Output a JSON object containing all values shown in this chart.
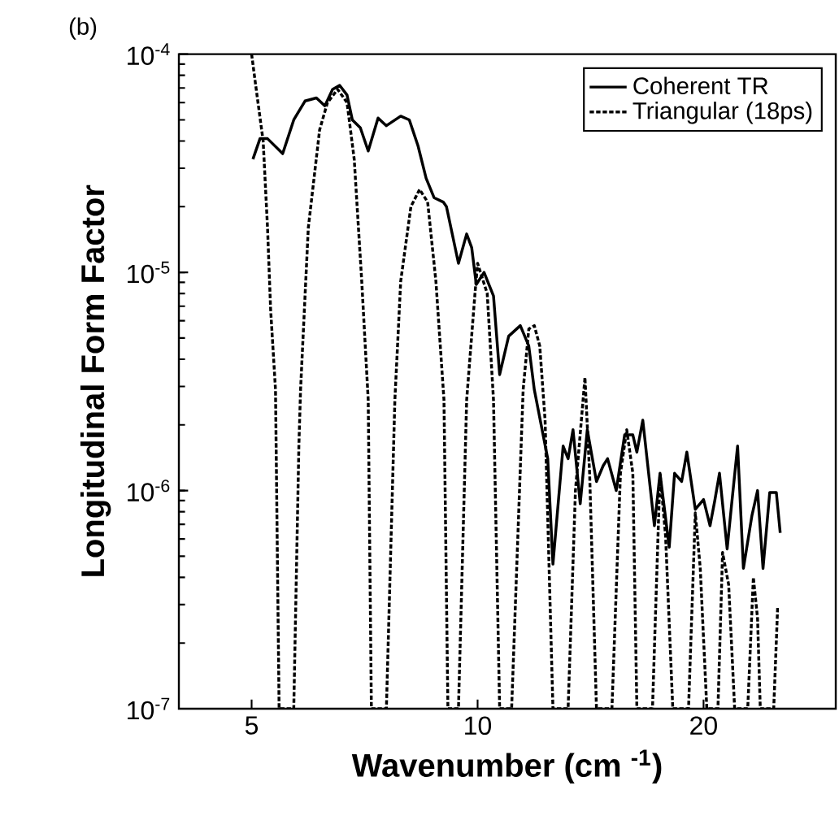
{
  "chart_data": {
    "type": "line",
    "xlabel": "Wavenumber (cm $^{-1}$)",
    "ylabel": "Longitudinal Form Factor",
    "annotations": [
      "(b)"
    ],
    "log": "xy",
    "xlim": [
      4,
      30
    ],
    "xticks": [
      5,
      10,
      20
    ],
    "ylim": [
      1e-07,
      0.0001
    ],
    "yticks": [
      {
        "value": 1e-07,
        "label": "10$^{-7}$"
      },
      {
        "value": 1e-06,
        "label": "10$^{-6}$"
      },
      {
        "value": 1e-05,
        "label": "10$^{-5}$"
      },
      {
        "value": 0.0001,
        "label": "10$^{-4}$"
      }
    ],
    "legend": "top right",
    "series": [
      {
        "name": "Coherent TR",
        "color": "#000000",
        "line_style": "solid",
        "x": [
          5.02,
          5.13,
          5.25,
          5.5,
          5.69,
          5.89,
          6.1,
          6.26,
          6.41,
          6.55,
          6.7,
          6.81,
          6.98,
          7.15,
          7.37,
          7.56,
          7.9,
          8.11,
          8.33,
          8.54,
          8.75,
          9.0,
          9.09,
          9.43,
          9.67,
          9.82,
          9.96,
          10.2,
          10.3,
          10.5,
          10.7,
          11.0,
          11.4,
          11.7,
          11.9,
          12.4,
          12.6,
          13.0,
          13.2,
          13.4,
          13.7,
          14.0,
          14.4,
          14.7,
          14.9,
          15.3,
          15.7,
          16.1,
          16.3,
          16.6,
          17.2,
          17.5,
          18.0,
          18.3,
          18.7,
          19.0,
          19.5,
          20.0,
          20.4,
          20.7,
          21.0,
          21.5,
          21.8,
          22.2,
          22.6,
          23.2,
          23.6,
          24.0,
          24.5,
          25.0,
          25.3
        ],
        "values": [
          3.3e-05,
          4.1e-05,
          4.1e-05,
          3.5e-05,
          5e-05,
          6.1e-05,
          6.3e-05,
          5.8e-05,
          6.9e-05,
          7.2e-05,
          6.5e-05,
          5e-05,
          4.6e-05,
          3.6e-05,
          5.1e-05,
          4.7e-05,
          5.2e-05,
          5e-05,
          3.8e-05,
          2.7e-05,
          2.2e-05,
          2.1e-05,
          2e-05,
          1.1e-05,
          1.5e-05,
          1.3e-05,
          8.8e-06,
          1e-05,
          9.2e-06,
          7.8e-06,
          3.4e-06,
          5.1e-06,
          5.7e-06,
          4.6e-06,
          2.9e-06,
          1.4e-06,
          4.6e-07,
          1.6e-06,
          1.4e-06,
          1.9e-06,
          8.7e-07,
          1.9e-06,
          1.1e-06,
          1.3e-06,
          1.4e-06,
          1e-06,
          1.8e-06,
          1.8e-06,
          1.5e-06,
          2.1e-06,
          6.9e-07,
          1.2e-06,
          5.5e-07,
          1.2e-06,
          1.1e-06,
          1.5e-06,
          8.2e-07,
          9.1e-07,
          6.9e-07,
          9e-07,
          1.2e-06,
          5.4e-07,
          8.7e-07,
          1.6e-06,
          4.4e-07,
          7.7e-07,
          1e-06,
          4.4e-07,
          9.8e-07,
          9.8e-07,
          6.4e-07
        ]
      },
      {
        "name": "Triangular (18ps)",
        "color": "#000000",
        "line_style": "dashed",
        "x": [
          5.0,
          5.08,
          5.18,
          5.25,
          5.3,
          5.38,
          5.44,
          5.69,
          5.78,
          5.81,
          5.95,
          6.16,
          6.31,
          6.51,
          6.7,
          6.85,
          7.01,
          7.15,
          7.22,
          7.56,
          7.76,
          7.9,
          8.15,
          8.37,
          8.58,
          8.8,
          9.02,
          9.13,
          9.43,
          9.67,
          9.92,
          10.0,
          10.3,
          10.5,
          10.7,
          11.1,
          11.5,
          11.7,
          11.9,
          12.1,
          12.3,
          12.6,
          13.2,
          13.5,
          13.9,
          14.1,
          14.4,
          15.1,
          15.5,
          15.8,
          16.1,
          16.3,
          17.1,
          17.5,
          17.8,
          18.2,
          19.1,
          19.5,
          19.8,
          20.2,
          20.9,
          21.2,
          21.6,
          22.0,
          22.9,
          23.3,
          23.6,
          23.8,
          24.8,
          25.1
        ],
        "values": [
          0.0001,
          6.6e-05,
          4e-05,
          1.6e-05,
          6.8e-06,
          2.9e-06,
          1e-07,
          1e-07,
          1.6e-06,
          2.9e-06,
          1.6e-05,
          4.5e-05,
          6e-05,
          6.9e-05,
          6e-05,
          3.3e-05,
          9.1e-06,
          2.6e-06,
          1e-07,
          1e-07,
          2.6e-06,
          9.1e-06,
          2e-05,
          2.4e-05,
          2.1e-05,
          9.1e-06,
          2.6e-06,
          1e-07,
          1e-07,
          2.6e-06,
          8e-06,
          1.1e-05,
          8e-06,
          2.6e-06,
          1e-07,
          1e-07,
          2.9e-06,
          5.5e-06,
          5.7e-06,
          4.6e-06,
          2.1e-06,
          1e-07,
          1e-07,
          1e-06,
          3.3e-06,
          1.2e-06,
          1e-07,
          1e-07,
          1.2e-06,
          1.9e-06,
          1.2e-06,
          1e-07,
          1e-07,
          1.2e-06,
          6.2e-07,
          1e-07,
          1e-07,
          7.9e-07,
          4.4e-07,
          1e-07,
          1e-07,
          5.2e-07,
          3.7e-07,
          1e-07,
          1e-07,
          4e-07,
          2.6e-07,
          1e-07,
          1e-07,
          2.9e-07
        ]
      }
    ]
  }
}
